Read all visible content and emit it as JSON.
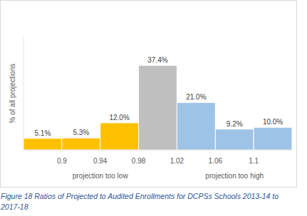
{
  "chart_data": {
    "type": "histogram",
    "y_label": "% of all projections",
    "bins": [
      0.86,
      0.9,
      0.94,
      0.98,
      1.02,
      1.06,
      1.1,
      1.14
    ],
    "values": [
      5.1,
      5.3,
      12.0,
      37.4,
      21.0,
      9.2,
      10.0
    ],
    "value_labels": [
      "5.1%",
      "5.3%",
      "12.0%",
      "37.4%",
      "21.0%",
      "9.2%",
      "10.0%"
    ],
    "colors": [
      "#ffc000",
      "#ffc000",
      "#ffc000",
      "#bfbfbf",
      "#9dc3e6",
      "#9dc3e6",
      "#9dc3e6"
    ],
    "xlim": [
      0.86,
      1.14
    ],
    "xticks": [
      0.9,
      0.94,
      0.98,
      1.02,
      1.06,
      1.1
    ],
    "ylim": [
      0,
      50
    ],
    "tick_labels": "x",
    "data_labels": true,
    "grid": false,
    "annotations": [
      {
        "text": "projection too low",
        "x": 0.94
      },
      {
        "text": "projection too high",
        "x": 1.08
      }
    ],
    "caption": "Figure 18 Ratios of Projected to Audited Enrollments for DCPSs Schools 2013-14 to 2017-18"
  }
}
